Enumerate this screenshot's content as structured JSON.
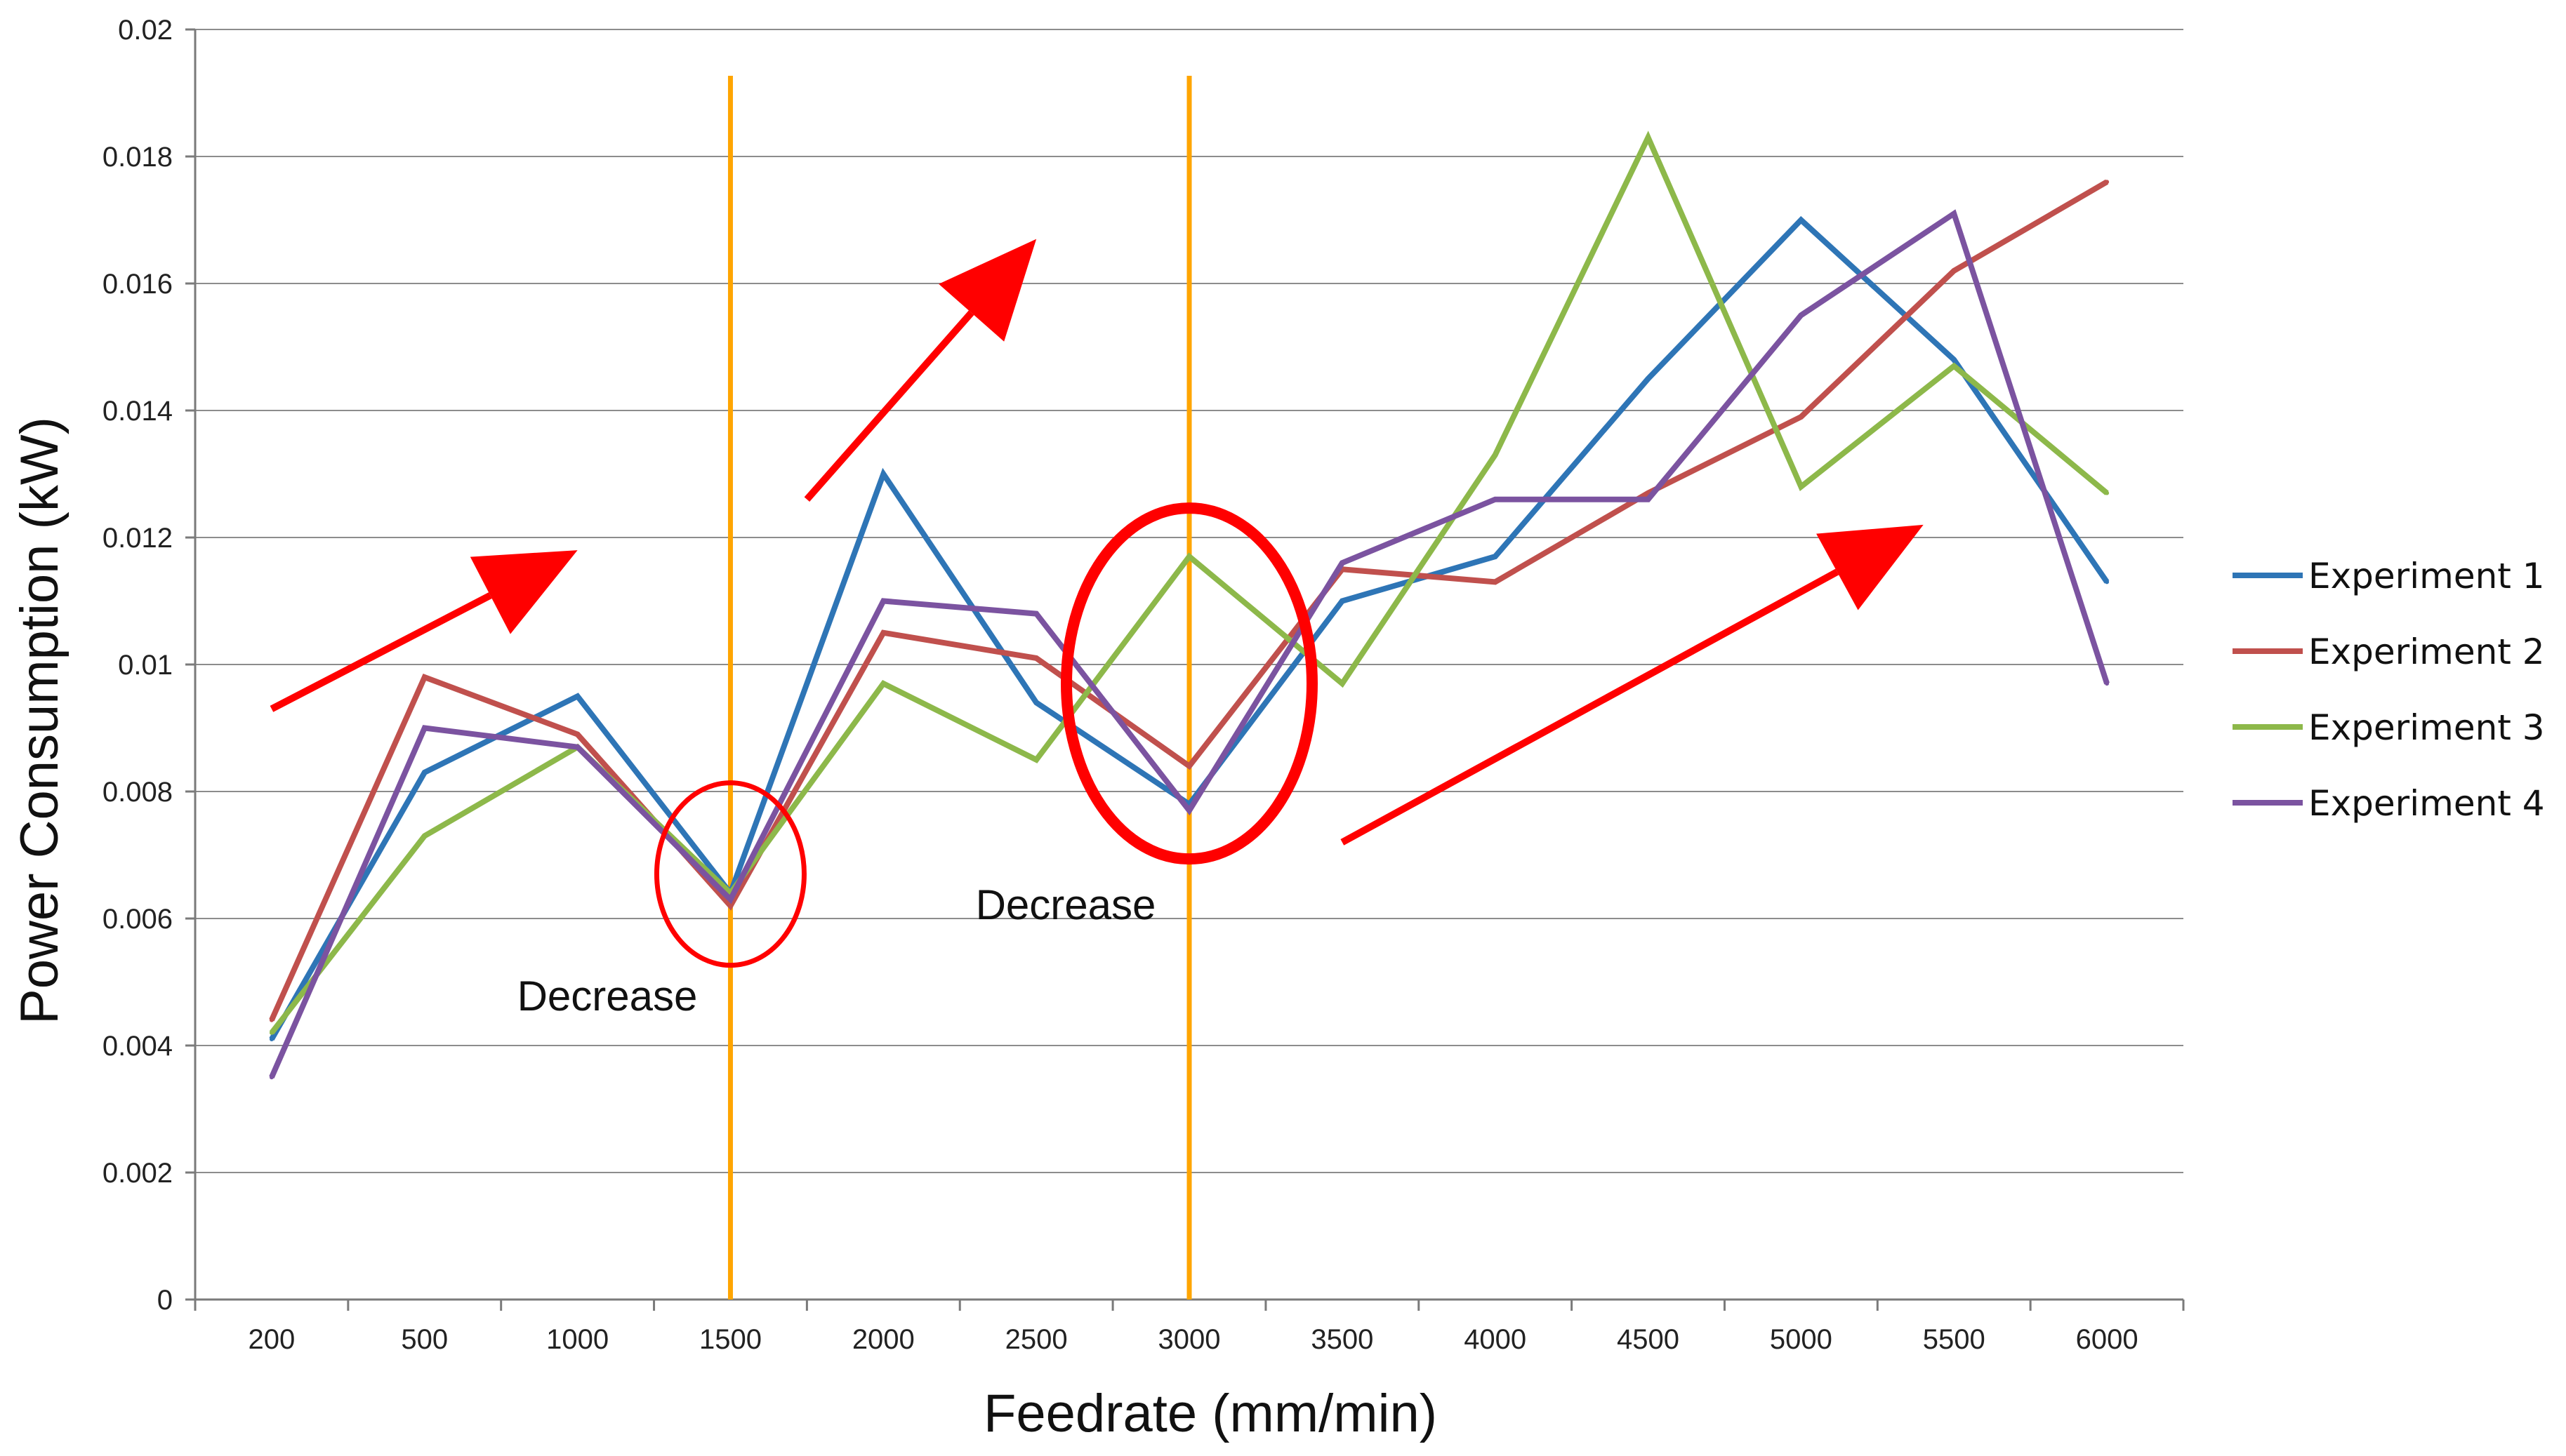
{
  "chart_data": {
    "type": "line",
    "title": "",
    "xlabel": "Feedrate (mm/min)",
    "ylabel": "Power Consumption (kW)",
    "categories": [
      "200",
      "500",
      "1000",
      "1500",
      "2000",
      "2500",
      "3000",
      "3500",
      "4000",
      "4500",
      "5000",
      "5500",
      "6000"
    ],
    "ylim": [
      0,
      0.02
    ],
    "yticks": [
      "0",
      "0.002",
      "0.004",
      "0.006",
      "0.008",
      "0.01",
      "0.012",
      "0.014",
      "0.016",
      "0.018",
      "0.02"
    ],
    "grid": true,
    "legend_position": "right",
    "series": [
      {
        "name": "Experiment 1",
        "color": "#2e75b6",
        "values": [
          0.0041,
          0.0083,
          0.0095,
          0.0064,
          0.013,
          0.0094,
          0.0078,
          0.011,
          0.0117,
          0.0145,
          0.017,
          0.0148,
          0.0113
        ]
      },
      {
        "name": "Experiment 2",
        "color": "#c0504d",
        "values": [
          0.0044,
          0.0098,
          0.0089,
          0.0062,
          0.0105,
          0.0101,
          0.0084,
          0.0115,
          0.0113,
          0.0127,
          0.0139,
          0.0162,
          0.0176
        ]
      },
      {
        "name": "Experiment 3",
        "color": "#8db84a",
        "values": [
          0.0042,
          0.0073,
          0.0087,
          0.0064,
          0.0097,
          0.0085,
          0.0117,
          0.0097,
          0.0133,
          0.0183,
          0.0128,
          0.0147,
          0.0127
        ]
      },
      {
        "name": "Experiment 4",
        "color": "#7b53a0",
        "values": [
          0.0035,
          0.009,
          0.0087,
          0.0063,
          0.011,
          0.0108,
          0.0077,
          0.0116,
          0.0126,
          0.0126,
          0.0155,
          0.0171,
          0.0097
        ]
      }
    ],
    "vertical_markers": [
      {
        "category": "1500",
        "color": "#ffa500"
      },
      {
        "category": "3000",
        "color": "#ffa500"
      }
    ],
    "annotations": [
      {
        "text": "Decrease",
        "near_category": "1500",
        "color": "#111111"
      },
      {
        "text": "Decrease",
        "near_category": "3000",
        "color": "#111111"
      }
    ],
    "highlight_circles": [
      {
        "category": "1500",
        "value_center": 0.0067,
        "color": "#ff0000"
      },
      {
        "category": "3000",
        "value_center": 0.0097,
        "color": "#ff0000"
      }
    ],
    "trend_arrows": [
      {
        "from": [
          "200",
          0.0093
        ],
        "to": [
          "1000",
          0.0118
        ],
        "color": "#ff0000"
      },
      {
        "from": [
          "1750",
          0.0126
        ],
        "to": [
          "2500",
          0.0167
        ],
        "color": "#ff0000"
      },
      {
        "from": [
          "3500",
          0.0072
        ],
        "to": [
          "5400",
          0.0122
        ],
        "color": "#ff0000"
      }
    ]
  }
}
